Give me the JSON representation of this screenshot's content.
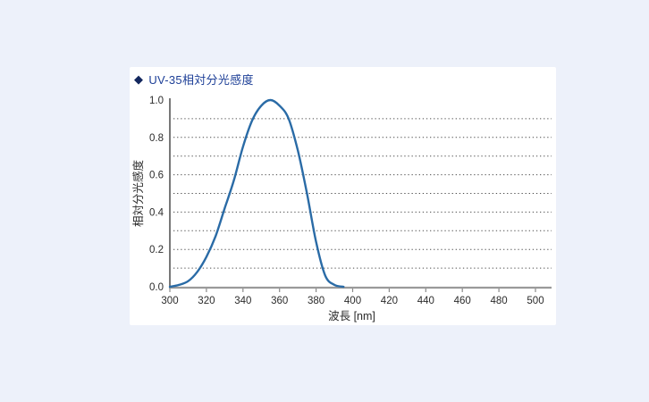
{
  "page": {
    "background_color": "#edf1fa",
    "panel_background_color": "#ffffff"
  },
  "header": {
    "bullet_glyph": "◆",
    "bullet_color": "#13275e",
    "title": "UV-35相対分光感度",
    "title_color": "#1d3f97"
  },
  "chart_data": {
    "type": "line",
    "title": "UV-35相対分光感度",
    "xlabel": "波長 [nm]",
    "ylabel": "相対分光感度",
    "xlim": [
      300,
      509
    ],
    "ylim": [
      0.0,
      1.0
    ],
    "x_ticks": [
      300,
      320,
      340,
      360,
      380,
      400,
      420,
      440,
      460,
      480,
      500
    ],
    "x_tick_labels": [
      "300",
      "320",
      "340",
      "360",
      "380",
      "400",
      "420",
      "440",
      "460",
      "480",
      "500"
    ],
    "y_ticks": [
      0.0,
      0.2,
      0.4,
      0.6,
      0.8,
      1.0
    ],
    "y_tick_labels": [
      "0.0",
      "0.2",
      "0.4",
      "0.6",
      "0.8",
      "1.0"
    ],
    "grid": "horizontal dotted lines at 0.1 intervals (0.1 to 0.9)",
    "grid_y": [
      0.1,
      0.2,
      0.3,
      0.4,
      0.5,
      0.6,
      0.7,
      0.8,
      0.9
    ],
    "legend": "none",
    "series": [
      {
        "color": "#2a6ba6",
        "x": [
          300,
          305,
          310,
          315,
          320,
          325,
          330,
          335,
          340,
          345,
          350,
          355,
          360,
          365,
          370,
          375,
          380,
          385,
          390,
          395
        ],
        "y": [
          0.0,
          0.01,
          0.03,
          0.08,
          0.16,
          0.27,
          0.42,
          0.57,
          0.75,
          0.89,
          0.97,
          1.0,
          0.97,
          0.9,
          0.73,
          0.5,
          0.24,
          0.06,
          0.01,
          0.0
        ]
      }
    ],
    "peak": {
      "wavelength_nm": 355,
      "value": 1.0
    }
  }
}
